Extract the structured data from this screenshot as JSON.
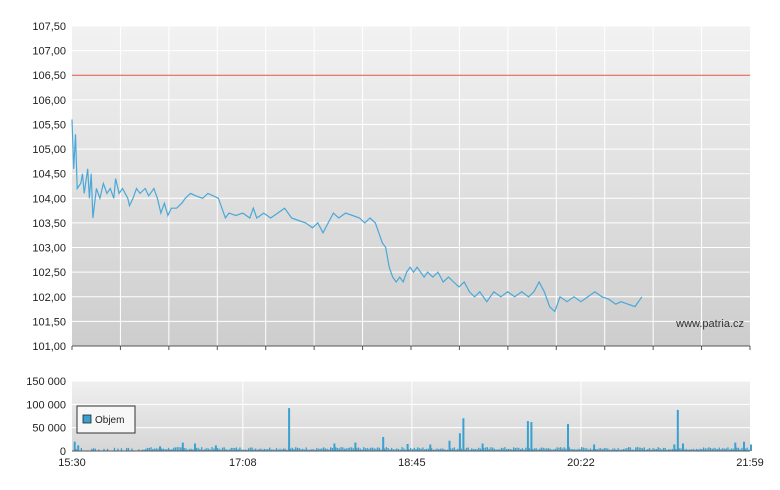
{
  "watermark": "www.patria.cz",
  "legend": {
    "label": "Objem"
  },
  "colors": {
    "price_line": "#4aa8d8",
    "volume_bar": "#3aa0d0",
    "reference_line": "#e05040",
    "grid": "#ffffff",
    "axis": "#555555"
  },
  "chart_data": [
    {
      "type": "line",
      "title": "",
      "xlabel": "",
      "ylabel": "",
      "ylim": [
        101.0,
        107.5
      ],
      "yticks": [
        "107,50",
        "107,00",
        "106,50",
        "106,00",
        "105,50",
        "105,00",
        "104,50",
        "104,00",
        "103,50",
        "103,00",
        "102,50",
        "102,00",
        "101,50",
        "101,00"
      ],
      "reference_line": 106.5,
      "grid": true,
      "x_time_range": [
        "15:30",
        "21:59"
      ],
      "series": [
        {
          "points": [
            [
              "15:30",
              105.6
            ],
            [
              "15:31",
              104.6
            ],
            [
              "15:32",
              105.3
            ],
            [
              "15:33",
              104.2
            ],
            [
              "15:35",
              104.3
            ],
            [
              "15:36",
              104.5
            ],
            [
              "15:37",
              104.1
            ],
            [
              "15:39",
              104.6
            ],
            [
              "15:40",
              104.0
            ],
            [
              "15:41",
              104.5
            ],
            [
              "15:42",
              103.6
            ],
            [
              "15:44",
              104.2
            ],
            [
              "15:46",
              104.0
            ],
            [
              "15:48",
              104.3
            ],
            [
              "15:50",
              104.1
            ],
            [
              "15:52",
              104.2
            ],
            [
              "15:54",
              104.0
            ],
            [
              "15:55",
              104.4
            ],
            [
              "15:57",
              104.1
            ],
            [
              "15:59",
              104.2
            ],
            [
              "16:02",
              104.0
            ],
            [
              "16:03",
              103.85
            ],
            [
              "16:05",
              104.0
            ],
            [
              "16:07",
              104.2
            ],
            [
              "16:09",
              104.1
            ],
            [
              "16:12",
              104.2
            ],
            [
              "16:14",
              104.05
            ],
            [
              "16:17",
              104.2
            ],
            [
              "16:19",
              104.0
            ],
            [
              "16:21",
              103.7
            ],
            [
              "16:23",
              103.9
            ],
            [
              "16:25",
              103.65
            ],
            [
              "16:27",
              103.8
            ],
            [
              "16:30",
              103.8
            ],
            [
              "16:33",
              103.9
            ],
            [
              "16:35",
              104.0
            ],
            [
              "16:38",
              104.1
            ],
            [
              "16:41",
              104.05
            ],
            [
              "16:45",
              104.0
            ],
            [
              "16:48",
              104.1
            ],
            [
              "16:51",
              104.05
            ],
            [
              "16:54",
              104.0
            ],
            [
              "16:56",
              103.8
            ],
            [
              "16:58",
              103.6
            ],
            [
              "17:00",
              103.7
            ],
            [
              "17:04",
              103.65
            ],
            [
              "17:08",
              103.7
            ],
            [
              "17:12",
              103.6
            ],
            [
              "17:14",
              103.8
            ],
            [
              "17:16",
              103.6
            ],
            [
              "17:20",
              103.7
            ],
            [
              "17:24",
              103.6
            ],
            [
              "17:28",
              103.7
            ],
            [
              "17:32",
              103.8
            ],
            [
              "17:36",
              103.6
            ],
            [
              "17:40",
              103.55
            ],
            [
              "17:44",
              103.5
            ],
            [
              "17:48",
              103.4
            ],
            [
              "17:51",
              103.5
            ],
            [
              "17:54",
              103.3
            ],
            [
              "17:57",
              103.5
            ],
            [
              "18:00",
              103.7
            ],
            [
              "18:03",
              103.6
            ],
            [
              "18:07",
              103.7
            ],
            [
              "18:11",
              103.65
            ],
            [
              "18:15",
              103.6
            ],
            [
              "18:18",
              103.5
            ],
            [
              "18:21",
              103.6
            ],
            [
              "18:24",
              103.5
            ],
            [
              "18:26",
              103.3
            ],
            [
              "18:28",
              103.1
            ],
            [
              "18:30",
              103.0
            ],
            [
              "18:32",
              102.6
            ],
            [
              "18:34",
              102.4
            ],
            [
              "18:36",
              102.3
            ],
            [
              "18:38",
              102.4
            ],
            [
              "18:40",
              102.3
            ],
            [
              "18:42",
              102.5
            ],
            [
              "18:44",
              102.6
            ],
            [
              "18:46",
              102.5
            ],
            [
              "18:48",
              102.6
            ],
            [
              "18:50",
              102.5
            ],
            [
              "18:52",
              102.4
            ],
            [
              "18:54",
              102.5
            ],
            [
              "18:57",
              102.4
            ],
            [
              "19:00",
              102.5
            ],
            [
              "19:03",
              102.3
            ],
            [
              "19:06",
              102.4
            ],
            [
              "19:09",
              102.3
            ],
            [
              "19:12",
              102.2
            ],
            [
              "19:15",
              102.3
            ],
            [
              "19:18",
              102.1
            ],
            [
              "19:21",
              102.0
            ],
            [
              "19:24",
              102.1
            ],
            [
              "19:28",
              101.9
            ],
            [
              "19:32",
              102.1
            ],
            [
              "19:36",
              102.0
            ],
            [
              "19:40",
              102.1
            ],
            [
              "19:44",
              102.0
            ],
            [
              "19:48",
              102.1
            ],
            [
              "19:52",
              102.0
            ],
            [
              "19:55",
              102.1
            ],
            [
              "19:58",
              102.3
            ],
            [
              "20:01",
              102.1
            ],
            [
              "20:04",
              101.8
            ],
            [
              "20:07",
              101.7
            ],
            [
              "20:10",
              102.0
            ],
            [
              "20:14",
              101.9
            ],
            [
              "20:18",
              102.0
            ],
            [
              "20:22",
              101.9
            ],
            [
              "20:26",
              102.0
            ],
            [
              "20:30",
              102.1
            ],
            [
              "20:34",
              102.0
            ],
            [
              "20:38",
              101.95
            ],
            [
              "20:42",
              101.85
            ],
            [
              "20:45",
              101.9
            ],
            [
              "20:49",
              101.85
            ],
            [
              "20:53",
              101.8
            ],
            [
              "20:57",
              102.0
            ]
          ]
        }
      ]
    },
    {
      "type": "bar",
      "title": "",
      "xlabel": "",
      "ylabel": "",
      "ylim": [
        0,
        150000
      ],
      "yticks": [
        "150 000",
        "100 000",
        "50 000",
        "0"
      ],
      "xticks": [
        "15:30",
        "17:08",
        "18:45",
        "20:22",
        "21:59"
      ],
      "legend": "inside-left",
      "grid": true,
      "series": [
        {
          "name": "Objem",
          "spikes": [
            [
              "15:31",
              20000
            ],
            [
              "15:33",
              12000
            ],
            [
              "16:20",
              10000
            ],
            [
              "16:33",
              18000
            ],
            [
              "16:40",
              16000
            ],
            [
              "16:52",
              12000
            ],
            [
              "17:34",
              92000
            ],
            [
              "18:00",
              16000
            ],
            [
              "18:12",
              18000
            ],
            [
              "18:28",
              30000
            ],
            [
              "18:42",
              15000
            ],
            [
              "18:55",
              14000
            ],
            [
              "19:06",
              22000
            ],
            [
              "19:12",
              38000
            ],
            [
              "19:14",
              70000
            ],
            [
              "19:25",
              16000
            ],
            [
              "19:51",
              64000
            ],
            [
              "19:53",
              62000
            ],
            [
              "20:14",
              58000
            ],
            [
              "20:29",
              14000
            ],
            [
              "21:15",
              14000
            ],
            [
              "21:17",
              88000
            ],
            [
              "21:20",
              16000
            ],
            [
              "21:50",
              18000
            ],
            [
              "21:55",
              20000
            ],
            [
              "21:59",
              14000
            ]
          ]
        }
      ]
    }
  ]
}
